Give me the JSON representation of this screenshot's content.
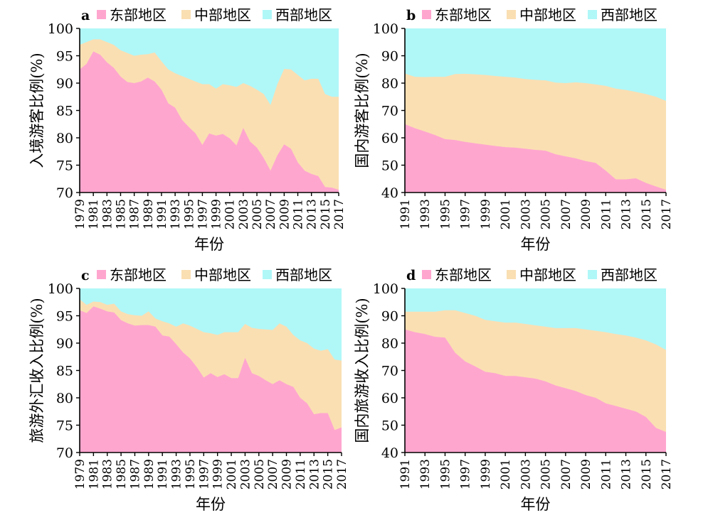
{
  "colors": {
    "east": "#FFA6CF",
    "central": "#FADFB3",
    "west": "#B0F7F8"
  },
  "common": {
    "xlabel": "年份"
  },
  "chart_data": [
    {
      "panel_label": "a",
      "type": "area",
      "stacked": true,
      "ylabel": "入境游客比例(%)",
      "xlabel": "年份",
      "ylim": [
        70,
        100
      ],
      "yticks": [
        70,
        75,
        80,
        85,
        90,
        95,
        100
      ],
      "xticks": [
        1979,
        1981,
        1983,
        1985,
        1987,
        1989,
        1991,
        1993,
        1995,
        1997,
        1999,
        2001,
        2003,
        2005,
        2007,
        2009,
        2011,
        2013,
        2015,
        2017
      ],
      "legend_position": "top",
      "x": [
        1979,
        1980,
        1981,
        1982,
        1983,
        1984,
        1985,
        1986,
        1987,
        1988,
        1989,
        1990,
        1991,
        1992,
        1993,
        1994,
        1995,
        1996,
        1997,
        1998,
        1999,
        2000,
        2001,
        2002,
        2003,
        2004,
        2005,
        2006,
        2007,
        2008,
        2009,
        2010,
        2011,
        2012,
        2013,
        2014,
        2015,
        2016,
        2017
      ],
      "series": [
        {
          "name": "东部地区",
          "color_key": "east",
          "values": [
            92.5,
            93.5,
            95.8,
            95.2,
            93.8,
            92.8,
            91.2,
            90.2,
            90.0,
            90.3,
            91.0,
            90.3,
            88.8,
            86.3,
            85.5,
            83.3,
            82.0,
            80.8,
            78.7,
            80.8,
            80.4,
            80.7,
            79.9,
            78.6,
            81.8,
            79.3,
            78.2,
            76.3,
            74.0,
            76.8,
            78.8,
            78.0,
            75.5,
            74.0,
            73.4,
            73.0,
            71.0,
            70.9,
            70.5
          ]
        },
        {
          "name": "中部地区",
          "color_key": "central",
          "values": [
            97.0,
            97.5,
            98.0,
            98.0,
            97.5,
            97.0,
            96.0,
            95.5,
            95.0,
            95.2,
            95.3,
            95.6,
            94.0,
            92.5,
            91.8,
            91.3,
            90.8,
            90.3,
            89.8,
            89.8,
            89.0,
            89.8,
            89.6,
            89.3,
            90.0,
            89.5,
            88.8,
            88.0,
            86.0,
            89.8,
            92.6,
            92.5,
            91.5,
            90.5,
            90.8,
            90.8,
            88.0,
            87.5,
            87.5
          ]
        },
        {
          "name": "西部地区",
          "color_key": "west",
          "values": [
            100,
            100,
            100,
            100,
            100,
            100,
            100,
            100,
            100,
            100,
            100,
            100,
            100,
            100,
            100,
            100,
            100,
            100,
            100,
            100,
            100,
            100,
            100,
            100,
            100,
            100,
            100,
            100,
            100,
            100,
            100,
            100,
            100,
            100,
            100,
            100,
            100,
            100,
            100
          ]
        }
      ]
    },
    {
      "panel_label": "b",
      "type": "area",
      "stacked": true,
      "ylabel": "国内游客比例(%)",
      "xlabel": "年份",
      "ylim": [
        40,
        100
      ],
      "yticks": [
        40,
        50,
        60,
        70,
        80,
        90,
        100
      ],
      "xticks": [
        1991,
        1993,
        1995,
        1997,
        1999,
        2001,
        2003,
        2005,
        2007,
        2009,
        2011,
        2013,
        2015,
        2017
      ],
      "legend_position": "top",
      "x": [
        1991,
        1992,
        1993,
        1994,
        1995,
        1996,
        1997,
        1998,
        1999,
        2000,
        2001,
        2002,
        2003,
        2004,
        2005,
        2006,
        2007,
        2008,
        2009,
        2010,
        2011,
        2012,
        2013,
        2014,
        2015,
        2016,
        2017
      ],
      "series": [
        {
          "name": "东部地区",
          "color_key": "east",
          "values": [
            65.0,
            63.5,
            62.3,
            61.0,
            59.5,
            59.2,
            58.5,
            58.0,
            57.5,
            57.0,
            56.6,
            56.4,
            56.0,
            55.6,
            55.3,
            54.0,
            53.2,
            52.5,
            51.5,
            50.8,
            48.0,
            44.8,
            44.8,
            45.2,
            43.5,
            42.2,
            41.0
          ]
        },
        {
          "name": "中部地区",
          "color_key": "central",
          "values": [
            83.5,
            82.3,
            82.2,
            82.3,
            82.3,
            83.3,
            83.4,
            83.2,
            83.0,
            82.6,
            82.3,
            82.0,
            81.5,
            81.2,
            81.0,
            80.2,
            80.0,
            80.3,
            80.0,
            79.5,
            79.0,
            78.0,
            77.5,
            76.8,
            76.0,
            75.0,
            73.5
          ]
        },
        {
          "name": "西部地区",
          "color_key": "west",
          "values": [
            100,
            100,
            100,
            100,
            100,
            100,
            100,
            100,
            100,
            100,
            100,
            100,
            100,
            100,
            100,
            100,
            100,
            100,
            100,
            100,
            100,
            100,
            100,
            100,
            100,
            100,
            100
          ]
        }
      ]
    },
    {
      "panel_label": "c",
      "type": "area",
      "stacked": true,
      "ylabel": "旅游外汇收入比例(%)",
      "xlabel": "年份",
      "ylim": [
        70,
        100
      ],
      "yticks": [
        70,
        75,
        80,
        85,
        90,
        95,
        100
      ],
      "xticks": [
        1979,
        1981,
        1983,
        1985,
        1987,
        1989,
        1991,
        1993,
        1995,
        1997,
        1999,
        2001,
        2003,
        2005,
        2007,
        2009,
        2011,
        2013,
        2015,
        2017
      ],
      "legend_position": "top",
      "x": [
        1979,
        1980,
        1981,
        1982,
        1983,
        1984,
        1985,
        1986,
        1987,
        1988,
        1989,
        1990,
        1991,
        1992,
        1993,
        1994,
        1995,
        1996,
        1997,
        1998,
        1999,
        2000,
        2001,
        2002,
        2003,
        2004,
        2005,
        2006,
        2007,
        2008,
        2009,
        2010,
        2011,
        2012,
        2013,
        2014,
        2015,
        2016,
        2017
      ],
      "series": [
        {
          "name": "东部地区",
          "color_key": "east",
          "values": [
            96.0,
            95.5,
            96.7,
            96.3,
            95.8,
            95.6,
            94.2,
            93.6,
            93.2,
            93.3,
            93.3,
            93.0,
            91.4,
            91.2,
            89.8,
            88.3,
            87.2,
            85.6,
            83.7,
            84.5,
            83.8,
            84.3,
            83.6,
            83.6,
            87.3,
            84.5,
            84.0,
            83.2,
            82.5,
            83.2,
            82.5,
            82.0,
            80.0,
            79.0,
            77.0,
            77.2,
            77.2,
            74.1,
            74.6
          ]
        },
        {
          "name": "中部地区",
          "color_key": "central",
          "values": [
            98.0,
            97.0,
            97.6,
            97.5,
            97.0,
            97.2,
            95.8,
            95.3,
            95.1,
            95.0,
            95.8,
            94.5,
            94.0,
            93.6,
            93.0,
            93.6,
            93.2,
            92.6,
            92.0,
            91.8,
            91.5,
            92.0,
            92.0,
            92.0,
            93.5,
            92.8,
            92.6,
            92.5,
            92.4,
            93.6,
            93.0,
            91.5,
            90.5,
            90.0,
            89.0,
            88.6,
            88.9,
            87.0,
            86.8
          ]
        },
        {
          "name": "西部地区",
          "color_key": "west",
          "values": [
            100,
            100,
            100,
            100,
            100,
            100,
            100,
            100,
            100,
            100,
            100,
            100,
            100,
            100,
            100,
            100,
            100,
            100,
            100,
            100,
            100,
            100,
            100,
            100,
            100,
            100,
            100,
            100,
            100,
            100,
            100,
            100,
            100,
            100,
            100,
            100,
            100,
            100,
            100
          ]
        }
      ]
    },
    {
      "panel_label": "d",
      "type": "area",
      "stacked": true,
      "ylabel": "国内旅游收入比例(%)",
      "xlabel": "年份",
      "ylim": [
        40,
        100
      ],
      "yticks": [
        40,
        50,
        60,
        70,
        80,
        90,
        100
      ],
      "xticks": [
        1991,
        1993,
        1995,
        1997,
        1999,
        2001,
        2003,
        2005,
        2007,
        2009,
        2011,
        2013,
        2015,
        2017
      ],
      "legend_position": "top",
      "x": [
        1991,
        1992,
        1993,
        1994,
        1995,
        1996,
        1997,
        1998,
        1999,
        2000,
        2001,
        2002,
        2003,
        2004,
        2005,
        2006,
        2007,
        2008,
        2009,
        2010,
        2011,
        2012,
        2013,
        2014,
        2015,
        2016,
        2017
      ],
      "series": [
        {
          "name": "东部地区",
          "color_key": "east",
          "values": [
            85.0,
            84.0,
            83.3,
            82.3,
            82.0,
            76.5,
            73.3,
            71.5,
            69.5,
            69.0,
            68.0,
            68.0,
            67.5,
            67.0,
            66.0,
            64.5,
            63.5,
            62.5,
            61.0,
            60.0,
            58.0,
            57.0,
            56.0,
            55.0,
            53.0,
            49.0,
            47.5
          ]
        },
        {
          "name": "中部地区",
          "color_key": "central",
          "values": [
            91.5,
            91.5,
            91.5,
            91.5,
            92.0,
            92.0,
            91.0,
            90.0,
            88.5,
            88.0,
            87.5,
            87.5,
            87.0,
            86.5,
            86.0,
            85.5,
            85.5,
            85.5,
            85.0,
            84.5,
            84.0,
            83.3,
            82.8,
            82.0,
            81.0,
            79.5,
            77.5
          ]
        },
        {
          "name": "西部地区",
          "color_key": "west",
          "values": [
            100,
            100,
            100,
            100,
            100,
            100,
            100,
            100,
            100,
            100,
            100,
            100,
            100,
            100,
            100,
            100,
            100,
            100,
            100,
            100,
            100,
            100,
            100,
            100,
            100,
            100,
            100
          ]
        }
      ]
    }
  ]
}
